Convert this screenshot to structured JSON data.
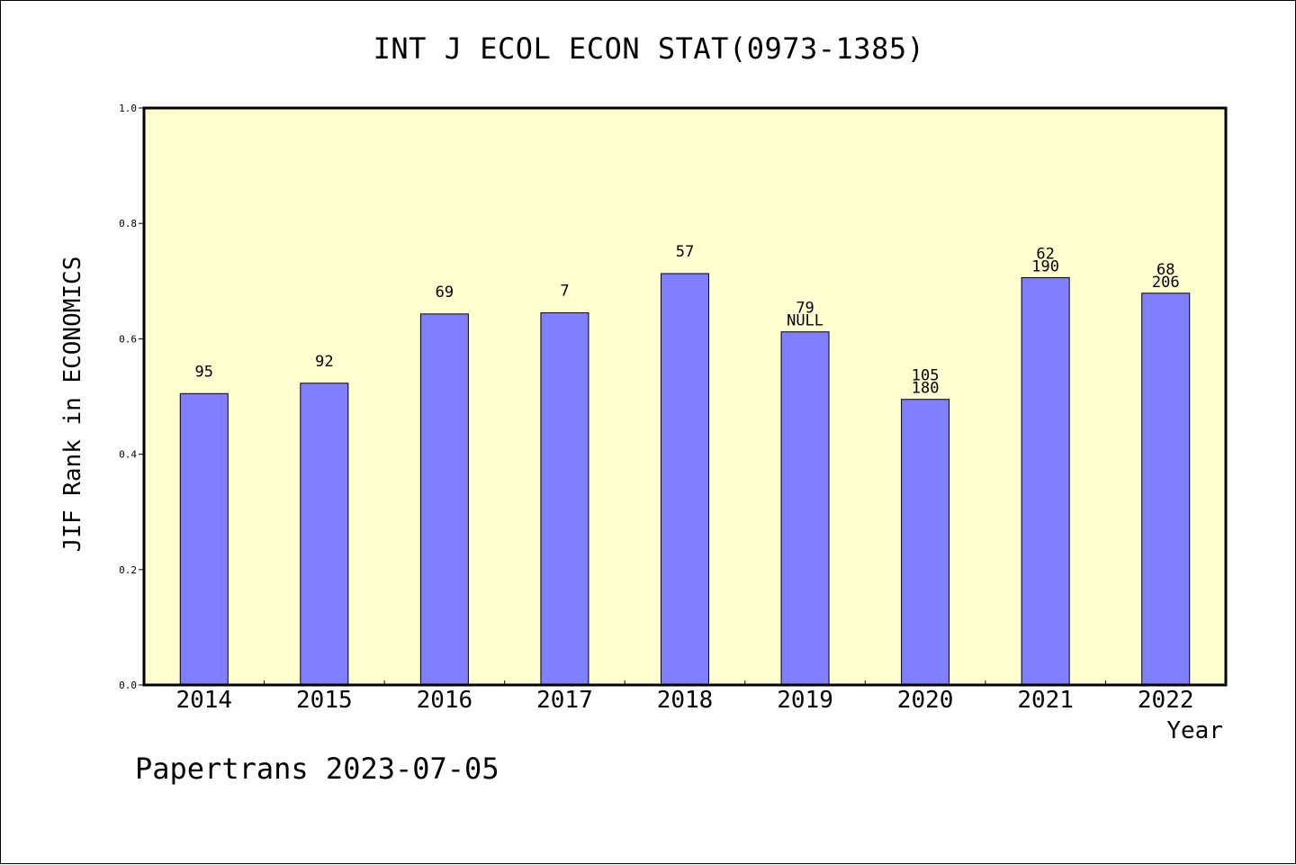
{
  "chart_data": {
    "type": "bar",
    "title": "INT J ECOL ECON STAT(0973-1385)",
    "xlabel": "Year",
    "ylabel": "JIF Rank in ECONOMICS",
    "categories": [
      "2014",
      "2015",
      "2016",
      "2017",
      "2018",
      "2019",
      "2020",
      "2021",
      "2022"
    ],
    "values": [
      0.505,
      0.523,
      0.643,
      0.645,
      0.713,
      0.612,
      0.495,
      0.706,
      0.679
    ],
    "bar_labels": [
      [
        "95"
      ],
      [
        "92"
      ],
      [
        "69"
      ],
      [
        "7"
      ],
      [
        "57"
      ],
      [
        "79",
        "NULL"
      ],
      [
        "105",
        "180"
      ],
      [
        "62",
        "190"
      ],
      [
        "68",
        "206"
      ]
    ],
    "ylim": [
      0,
      1.0
    ],
    "yticks": [
      "0.0",
      "0.2",
      "0.4",
      "0.6",
      "0.8",
      "1.0"
    ],
    "grid": false,
    "colors": {
      "bar": "#8080ff",
      "plot_background": "#ffffd0",
      "axis": "#000000"
    }
  },
  "footer": "Papertrans 2023-07-05"
}
